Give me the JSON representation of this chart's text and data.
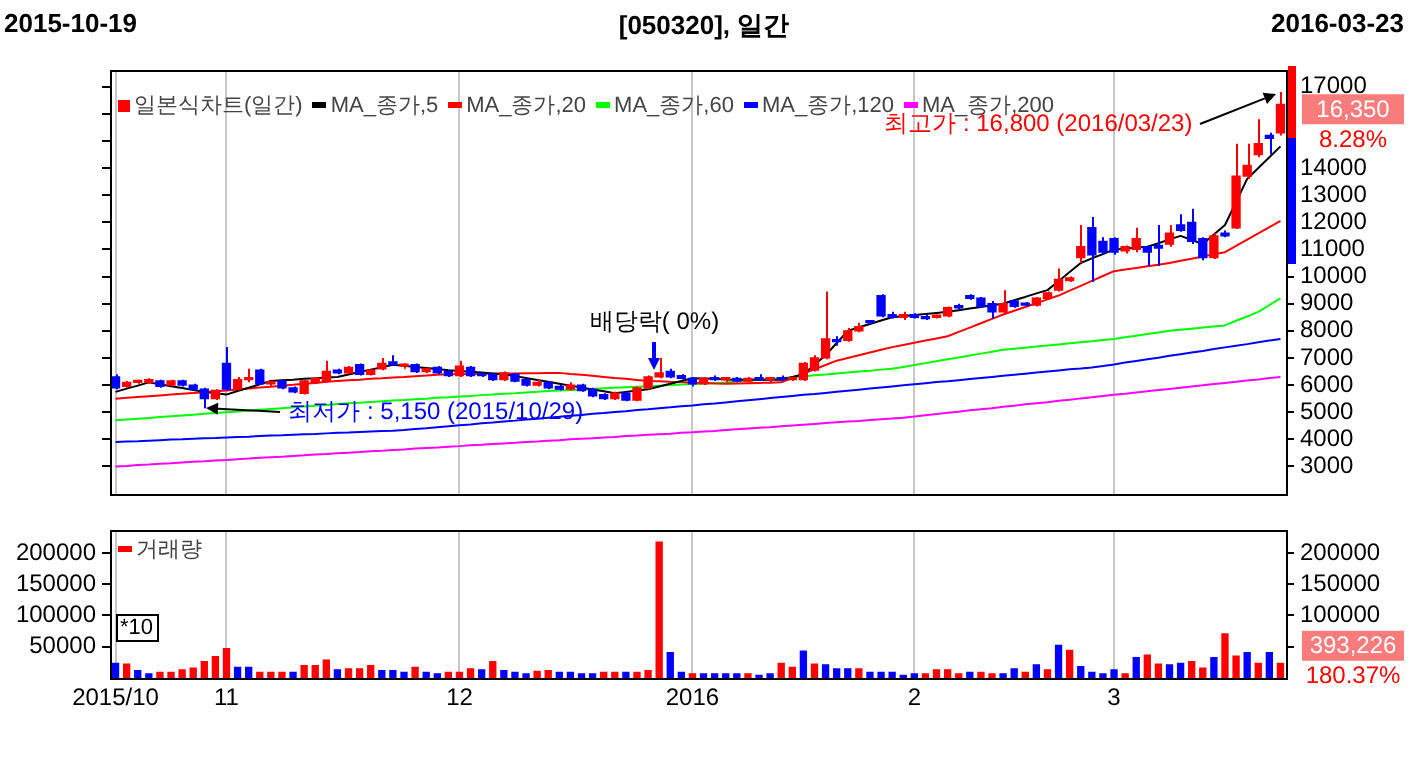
{
  "chart_data": [
    {
      "type": "candlestick",
      "title": "[050320], 일간",
      "legend": "top left",
      "grid": "x",
      "tick_labels": "y",
      "categories": [
        "2015/10",
        null,
        null,
        null,
        null,
        null,
        null,
        null,
        null,
        null,
        "11",
        null,
        null,
        null,
        null,
        null,
        null,
        null,
        null,
        null,
        null,
        null,
        null,
        null,
        null,
        null,
        null,
        null,
        null,
        null,
        null,
        "12",
        null,
        null,
        null,
        null,
        null,
        null,
        null,
        null,
        null,
        null,
        null,
        null,
        null,
        null,
        null,
        null,
        null,
        null,
        null,
        null,
        "2016",
        null,
        null,
        null,
        null,
        null,
        null,
        null,
        null,
        null,
        null,
        null,
        null,
        null,
        null,
        null,
        null,
        null,
        null,
        null,
        "2",
        null,
        null,
        null,
        null,
        null,
        null,
        null,
        null,
        null,
        null,
        null,
        null,
        null,
        null,
        null,
        null,
        null,
        "3",
        null,
        null,
        null,
        null,
        null,
        null,
        null,
        null,
        null,
        null,
        null,
        null,
        null,
        null,
        null
      ],
      "ylim": [
        2000,
        17600
      ],
      "yticks": [
        3000,
        4000,
        5000,
        6000,
        7000,
        8000,
        9000,
        10000,
        11000,
        12000,
        13000,
        14000,
        {
          "value": 15000,
          "label": null
        },
        {
          "value": 16000,
          "label": null
        },
        17000
      ],
      "annotations": [
        "2015-10-19",
        "2016-03-23",
        "16,350",
        "8.28%",
        "최고가 : 16,800 (2016/03/23)",
        {
          "text": "최저가 : 5,150 (2015/10/29)",
          "y": 5150
        },
        "배당락( 0%)"
      ],
      "series": [
        {
          "name": "일본식차트(일간)",
          "type": "candlestick",
          "color": "#ff0000",
          "ohlc": [
            [
              6300,
              6400,
              5850,
              5900
            ],
            [
              5950,
              6150,
              5900,
              6100
            ],
            [
              6100,
              6200,
              6050,
              6150
            ],
            [
              6100,
              6250,
              6050,
              6200
            ],
            [
              6150,
              6200,
              5900,
              5950
            ],
            [
              6000,
              6200,
              5950,
              6150
            ],
            [
              6150,
              6200,
              5950,
              6000
            ],
            [
              6000,
              6050,
              5800,
              5850
            ],
            [
              5850,
              5900,
              5150,
              5500
            ],
            [
              5500,
              5850,
              5450,
              5800
            ],
            [
              6800,
              7400,
              5800,
              5850
            ],
            [
              5850,
              6300,
              5800,
              6200
            ],
            [
              6200,
              6600,
              6100,
              6250
            ],
            [
              6550,
              6600,
              6000,
              6050
            ],
            [
              6050,
              6150,
              5950,
              6100
            ],
            [
              6150,
              6200,
              5850,
              5900
            ],
            [
              5900,
              5950,
              5700,
              5750
            ],
            [
              5700,
              6200,
              5650,
              6150
            ],
            [
              6100,
              6300,
              6050,
              6250
            ],
            [
              6150,
              6900,
              6100,
              6500
            ],
            [
              6550,
              6600,
              6400,
              6450
            ],
            [
              6450,
              6700,
              6400,
              6650
            ],
            [
              6750,
              6800,
              6350,
              6400
            ],
            [
              6400,
              6600,
              6350,
              6550
            ],
            [
              6600,
              7000,
              6550,
              6800
            ],
            [
              6850,
              7100,
              6700,
              6750
            ],
            [
              6700,
              6800,
              6600,
              6750
            ],
            [
              6750,
              6800,
              6450,
              6500
            ],
            [
              6500,
              6650,
              6450,
              6600
            ],
            [
              6650,
              6700,
              6400,
              6450
            ],
            [
              6500,
              6550,
              6300,
              6350
            ],
            [
              6350,
              6900,
              6300,
              6700
            ],
            [
              6650,
              6700,
              6300,
              6350
            ],
            [
              6400,
              6450,
              6300,
              6350
            ],
            [
              6400,
              6450,
              6150,
              6200
            ],
            [
              6200,
              6500,
              6150,
              6450
            ],
            [
              6400,
              6450,
              6100,
              6150
            ],
            [
              6200,
              6250,
              5950,
              6000
            ],
            [
              6000,
              6200,
              5950,
              6100
            ],
            [
              6100,
              6150,
              5850,
              5900
            ],
            [
              5950,
              6000,
              5800,
              5850
            ],
            [
              5850,
              6100,
              5800,
              6000
            ],
            [
              6000,
              6050,
              5750,
              5800
            ],
            [
              5850,
              5900,
              5550,
              5600
            ],
            [
              5650,
              5700,
              5450,
              5500
            ],
            [
              5500,
              5750,
              5450,
              5700
            ],
            [
              5700,
              5750,
              5400,
              5450
            ],
            [
              5450,
              5950,
              5400,
              5900
            ],
            [
              5900,
              6350,
              5850,
              6300
            ],
            [
              6300,
              7000,
              6250,
              6450
            ],
            [
              6500,
              6600,
              6250,
              6300
            ],
            [
              6350,
              6400,
              6200,
              6250
            ],
            [
              6250,
              6300,
              5950,
              6050
            ],
            [
              6050,
              6300,
              6000,
              6250
            ],
            [
              6250,
              6350,
              6150,
              6200
            ],
            [
              6200,
              6300,
              6100,
              6250
            ],
            [
              6250,
              6300,
              6100,
              6150
            ],
            [
              6150,
              6300,
              6100,
              6250
            ],
            [
              6250,
              6400,
              6150,
              6200
            ],
            [
              6200,
              6300,
              6100,
              6250
            ],
            [
              6250,
              6350,
              6150,
              6200
            ],
            [
              6200,
              6300,
              6150,
              6250
            ],
            [
              6200,
              6850,
              6150,
              6800
            ],
            [
              6550,
              7100,
              6500,
              7000
            ],
            [
              7000,
              9450,
              6950,
              7700
            ],
            [
              7650,
              7800,
              7450,
              7600
            ],
            [
              7650,
              8100,
              7600,
              8000
            ],
            [
              8000,
              8300,
              7950,
              8150
            ],
            [
              8350,
              8400,
              8250,
              8300
            ],
            [
              9300,
              9350,
              8500,
              8550
            ],
            [
              8600,
              8700,
              8450,
              8500
            ],
            [
              8500,
              8700,
              8400,
              8600
            ],
            [
              8600,
              8650,
              8450,
              8500
            ],
            [
              8500,
              8600,
              8400,
              8450
            ],
            [
              8500,
              8600,
              8450,
              8550
            ],
            [
              8550,
              8900,
              8500,
              8850
            ],
            [
              8900,
              9000,
              8800,
              8850
            ],
            [
              9300,
              9350,
              9150,
              9200
            ],
            [
              9200,
              9250,
              8850,
              8900
            ],
            [
              9000,
              9100,
              8450,
              8700
            ],
            [
              8700,
              9500,
              8650,
              9000
            ],
            [
              9100,
              9150,
              8850,
              8900
            ],
            [
              9000,
              9050,
              8900,
              8950
            ],
            [
              8950,
              9250,
              8900,
              9200
            ],
            [
              9200,
              9450,
              9150,
              9400
            ],
            [
              9500,
              10300,
              9450,
              9900
            ],
            [
              9850,
              10000,
              9800,
              9950
            ],
            [
              10700,
              11900,
              10500,
              11100
            ],
            [
              11800,
              12200,
              9800,
              10800
            ],
            [
              11300,
              11450,
              10800,
              10900
            ],
            [
              11400,
              11450,
              10800,
              10900
            ],
            [
              10950,
              11150,
              10850,
              11100
            ],
            [
              11000,
              11800,
              10900,
              11400
            ],
            [
              11100,
              11150,
              10400,
              10900
            ],
            [
              11150,
              11900,
              10400,
              11050
            ],
            [
              11200,
              11900,
              11100,
              11600
            ],
            [
              11900,
              12300,
              11650,
              11700
            ],
            [
              12000,
              12500,
              11200,
              11300
            ],
            [
              11400,
              11450,
              10600,
              10700
            ],
            [
              10700,
              11600,
              10650,
              11500
            ],
            [
              11600,
              11700,
              11450,
              11500
            ],
            [
              11800,
              14900,
              11750,
              13700
            ],
            [
              13700,
              14900,
              13600,
              14100
            ],
            [
              14500,
              15800,
              14400,
              14900
            ],
            [
              15200,
              15300,
              14500,
              15100
            ],
            [
              15300,
              16800,
              15200,
              16350
            ]
          ],
          "colors": [
            "#0000ff",
            "#ff0000",
            "#ff0000",
            "#ff0000",
            "#0000ff",
            "#ff0000",
            "#0000ff",
            "#0000ff",
            "#0000ff",
            "#ff0000",
            "#0000ff",
            "#ff0000",
            "#ff0000",
            "#0000ff",
            "#ff0000",
            "#0000ff",
            "#0000ff",
            "#ff0000",
            "#ff0000",
            "#ff0000",
            "#0000ff",
            "#ff0000",
            "#0000ff",
            "#ff0000",
            "#ff0000",
            "#0000ff",
            "#ff0000",
            "#0000ff",
            "#ff0000",
            "#0000ff",
            "#0000ff",
            "#ff0000",
            "#0000ff",
            "#0000ff",
            "#0000ff",
            "#ff0000",
            "#0000ff",
            "#0000ff",
            "#ff0000",
            "#0000ff",
            "#0000ff",
            "#ff0000",
            "#0000ff",
            "#0000ff",
            "#0000ff",
            "#ff0000",
            "#0000ff",
            "#ff0000",
            "#ff0000",
            "#ff0000",
            "#0000ff",
            "#0000ff",
            "#0000ff",
            "#ff0000",
            "#0000ff",
            "#ff0000",
            "#0000ff",
            "#ff0000",
            "#0000ff",
            "#ff0000",
            "#0000ff",
            "#ff0000",
            "#ff0000",
            "#ff0000",
            "#ff0000",
            "#0000ff",
            "#ff0000",
            "#ff0000",
            "#0000ff",
            "#0000ff",
            "#0000ff",
            "#ff0000",
            "#0000ff",
            "#0000ff",
            "#ff0000",
            "#ff0000",
            "#0000ff",
            "#0000ff",
            "#0000ff",
            "#0000ff",
            "#ff0000",
            "#0000ff",
            "#0000ff",
            "#ff0000",
            "#ff0000",
            "#ff0000",
            "#ff0000",
            "#ff0000",
            "#0000ff",
            "#0000ff",
            "#0000ff",
            "#ff0000",
            "#ff0000",
            "#0000ff",
            "#0000ff",
            "#ff0000",
            "#0000ff",
            "#0000ff",
            "#0000ff",
            "#ff0000",
            "#0000ff",
            "#ff0000",
            "#ff0000",
            "#ff0000",
            "#0000ff",
            "#ff0000"
          ]
        },
        {
          "name": "MA_종가,5",
          "type": "line",
          "color": "#000000",
          "values": [
            5750,
            5870,
            5980,
            6100,
            6030,
            5960,
            5890,
            5820,
            5750,
            5700,
            5650,
            5780,
            5900,
            6030,
            6150,
            6180,
            6200,
            6230,
            6250,
            6280,
            6300,
            6390,
            6480,
            6570,
            6660,
            6750,
            6710,
            6670,
            6630,
            6590,
            6550,
            6520,
            6490,
            6460,
            6430,
            6400,
            6330,
            6260,
            6190,
            6120,
            6050,
            5980,
            5910,
            5840,
            5770,
            5700,
            5750,
            5800,
            5850,
            5950,
            6050,
            6150,
            6250,
            6240,
            6230,
            6210,
            6200,
            6200,
            6200,
            6200,
            6200,
            6300,
            6400,
            6750,
            7100,
            7550,
            8000,
            8130,
            8250,
            8380,
            8500,
            8540,
            8580,
            8620,
            8660,
            8700,
            8760,
            8820,
            8880,
            8940,
            9000,
            9130,
            9250,
            9380,
            9500,
            9830,
            10170,
            10500,
            10670,
            10830,
            11000,
            11030,
            11070,
            11100,
            11230,
            11370,
            11500,
            11350,
            11200,
            11550,
            11900,
            12750,
            13600,
            14000,
            14400,
            14800
          ]
        },
        {
          "name": "MA_종가,20",
          "type": "line",
          "color": "#ff0000",
          "values": [
            5500,
            5530,
            5560,
            5590,
            5620,
            5650,
            5680,
            5710,
            5740,
            5770,
            5800,
            5840,
            5870,
            5910,
            5940,
            5980,
            6010,
            6050,
            6080,
            6120,
            6150,
            6180,
            6200,
            6230,
            6250,
            6280,
            6300,
            6330,
            6350,
            6380,
            6400,
            6410,
            6410,
            6420,
            6420,
            6430,
            6430,
            6440,
            6440,
            6450,
            6450,
            6410,
            6380,
            6340,
            6300,
            6260,
            6230,
            6190,
            6150,
            6140,
            6120,
            6110,
            6090,
            6080,
            6060,
            6050,
            6060,
            6070,
            6080,
            6090,
            6100,
            6260,
            6420,
            6580,
            6740,
            6900,
            7000,
            7100,
            7200,
            7300,
            7400,
            7480,
            7560,
            7640,
            7720,
            7800,
            7960,
            8120,
            8280,
            8440,
            8600,
            8740,
            8880,
            9020,
            9160,
            9300,
            9480,
            9660,
            9840,
            10020,
            10200,
            10260,
            10320,
            10380,
            10440,
            10500,
            10580,
            10660,
            10740,
            10820,
            10900,
            11130,
            11360,
            11590,
            11820,
            12050
          ]
        },
        {
          "name": "MA_종가,60",
          "type": "line",
          "color": "#00ff00",
          "values": [
            4700,
            4730,
            4760,
            4790,
            4820,
            4850,
            4880,
            4910,
            4940,
            4970,
            5000,
            5030,
            5060,
            5090,
            5120,
            5150,
            5180,
            5210,
            5240,
            5270,
            5300,
            5330,
            5350,
            5380,
            5400,
            5430,
            5450,
            5480,
            5500,
            5530,
            5550,
            5580,
            5600,
            5630,
            5650,
            5680,
            5700,
            5730,
            5750,
            5780,
            5800,
            5820,
            5840,
            5860,
            5880,
            5900,
            5920,
            5940,
            5960,
            5980,
            6000,
            6020,
            6040,
            6060,
            6080,
            6100,
            6130,
            6160,
            6190,
            6220,
            6250,
            6290,
            6320,
            6360,
            6390,
            6430,
            6460,
            6500,
            6530,
            6570,
            6600,
            6670,
            6740,
            6810,
            6880,
            6950,
            7020,
            7090,
            7160,
            7230,
            7300,
            7340,
            7380,
            7420,
            7460,
            7500,
            7540,
            7580,
            7620,
            7660,
            7700,
            7760,
            7820,
            7880,
            7940,
            8000,
            8040,
            8080,
            8120,
            8160,
            8200,
            8370,
            8530,
            8700,
            8950,
            9200
          ]
        },
        {
          "name": "MA_종가,120",
          "type": "line",
          "color": "#0000ff",
          "values": [
            3900,
            3920,
            3930,
            3950,
            3970,
            3990,
            4000,
            4020,
            4040,
            4050,
            4070,
            4090,
            4100,
            4120,
            4140,
            4150,
            4170,
            4190,
            4200,
            4220,
            4240,
            4250,
            4270,
            4290,
            4310,
            4320,
            4340,
            4380,
            4410,
            4450,
            4480,
            4520,
            4550,
            4590,
            4620,
            4660,
            4690,
            4730,
            4760,
            4800,
            4830,
            4870,
            4900,
            4940,
            4970,
            5010,
            5040,
            5080,
            5110,
            5150,
            5180,
            5220,
            5250,
            5290,
            5320,
            5360,
            5400,
            5440,
            5480,
            5520,
            5560,
            5600,
            5640,
            5670,
            5710,
            5750,
            5790,
            5830,
            5870,
            5910,
            5950,
            5990,
            6030,
            6070,
            6110,
            6140,
            6180,
            6220,
            6260,
            6300,
            6340,
            6380,
            6420,
            6460,
            6500,
            6540,
            6580,
            6610,
            6650,
            6700,
            6760,
            6830,
            6890,
            6950,
            7010,
            7080,
            7140,
            7200,
            7260,
            7330,
            7390,
            7450,
            7510,
            7580,
            7640,
            7700
          ]
        },
        {
          "name": "MA_종가,200",
          "type": "line",
          "color": "#ff00ff",
          "values": [
            3000,
            3020,
            3050,
            3070,
            3100,
            3120,
            3150,
            3170,
            3190,
            3220,
            3240,
            3270,
            3290,
            3320,
            3340,
            3360,
            3390,
            3410,
            3440,
            3460,
            3490,
            3510,
            3530,
            3560,
            3580,
            3610,
            3630,
            3660,
            3680,
            3700,
            3730,
            3750,
            3780,
            3800,
            3830,
            3850,
            3870,
            3900,
            3920,
            3950,
            3970,
            4000,
            4020,
            4040,
            4070,
            4090,
            4120,
            4140,
            4170,
            4190,
            4210,
            4240,
            4260,
            4290,
            4310,
            4340,
            4370,
            4400,
            4430,
            4450,
            4480,
            4510,
            4540,
            4570,
            4600,
            4630,
            4660,
            4680,
            4710,
            4740,
            4770,
            4800,
            4840,
            4890,
            4930,
            4980,
            5020,
            5070,
            5110,
            5150,
            5200,
            5240,
            5290,
            5330,
            5370,
            5420,
            5460,
            5510,
            5550,
            5600,
            5640,
            5680,
            5730,
            5770,
            5820,
            5860,
            5900,
            5950,
            5990,
            6040,
            6080,
            6120,
            6170,
            6210,
            6260,
            6300
          ]
        }
      ]
    },
    {
      "type": "bar",
      "legend": "top left",
      "grid": "x",
      "categories": [
        "2015/10",
        null,
        null,
        null,
        null,
        null,
        null,
        null,
        null,
        null,
        "11",
        null,
        null,
        null,
        null,
        null,
        null,
        null,
        null,
        null,
        null,
        null,
        null,
        null,
        null,
        null,
        null,
        null,
        null,
        null,
        null,
        "12",
        null,
        null,
        null,
        null,
        null,
        null,
        null,
        null,
        null,
        null,
        null,
        null,
        null,
        null,
        null,
        null,
        null,
        null,
        null,
        null,
        "2016",
        null,
        null,
        null,
        null,
        null,
        null,
        null,
        null,
        null,
        null,
        null,
        null,
        null,
        null,
        null,
        null,
        null,
        null,
        null,
        "2",
        null,
        null,
        null,
        null,
        null,
        null,
        null,
        null,
        null,
        null,
        null,
        null,
        null,
        null,
        null,
        null,
        null,
        "3",
        null,
        null,
        null,
        null,
        null,
        null,
        null,
        null,
        null,
        null,
        null,
        null,
        null,
        null,
        null
      ],
      "ylim": [
        0,
        236000
      ],
      "yticks": [
        50000,
        100000,
        150000,
        200000
      ],
      "y2lim": [
        0,
        236000
      ],
      "y2ticks": [
        {
          "value": 50000,
          "label": null
        },
        100000,
        150000,
        200000
      ],
      "annotations": [
        "*10",
        "393,226",
        "180.37%"
      ],
      "series": [
        {
          "name": "거래량",
          "color": "#ff0000",
          "values": [
            23500,
            22200,
            11700,
            6500,
            9100,
            9100,
            13000,
            15700,
            26000,
            34000,
            47000,
            17000,
            17000,
            9000,
            9000,
            9000,
            9000,
            19600,
            19600,
            28700,
            13000,
            14400,
            14400,
            19600,
            11700,
            11700,
            9000,
            17000,
            9000,
            6500,
            9000,
            9000,
            14400,
            13000,
            26000,
            11700,
            9000,
            6500,
            10400,
            11700,
            9000,
            9000,
            6500,
            6500,
            9000,
            9000,
            9000,
            9000,
            11700,
            217000,
            40500,
            9000,
            6500,
            6500,
            6500,
            6500,
            6500,
            6500,
            4000,
            6500,
            23500,
            17000,
            43000,
            22000,
            21000,
            14400,
            14400,
            14400,
            9000,
            9000,
            9000,
            4000,
            6500,
            6500,
            13000,
            13000,
            6500,
            9000,
            9000,
            6500,
            6500,
            14400,
            9000,
            21000,
            13000,
            52000,
            44000,
            18300,
            9000,
            6500,
            13000,
            6500,
            32600,
            36500,
            22200,
            21000,
            23500,
            26000,
            15700,
            32600,
            70500,
            35000,
            40500,
            23500,
            40500,
            23500
          ],
          "colors": [
            "#0000ff",
            "#ff0000",
            "#0000ff",
            "#0000ff",
            "#ff0000",
            "#ff0000",
            "#ff0000",
            "#ff0000",
            "#ff0000",
            "#ff0000",
            "#ff0000",
            "#0000ff",
            "#0000ff",
            "#ff0000",
            "#ff0000",
            "#ff0000",
            "#0000ff",
            "#ff0000",
            "#ff0000",
            "#ff0000",
            "#0000ff",
            "#ff0000",
            "#ff0000",
            "#ff0000",
            "#0000ff",
            "#0000ff",
            "#0000ff",
            "#ff0000",
            "#0000ff",
            "#0000ff",
            "#ff0000",
            "#ff0000",
            "#ff0000",
            "#0000ff",
            "#ff0000",
            "#0000ff",
            "#0000ff",
            "#0000ff",
            "#ff0000",
            "#ff0000",
            "#0000ff",
            "#0000ff",
            "#0000ff",
            "#0000ff",
            "#ff0000",
            "#ff0000",
            "#0000ff",
            "#ff0000",
            "#ff0000",
            "#ff0000",
            "#0000ff",
            "#0000ff",
            "#ff0000",
            "#0000ff",
            "#0000ff",
            "#0000ff",
            "#0000ff",
            "#ff0000",
            "#0000ff",
            "#0000ff",
            "#ff0000",
            "#ff0000",
            "#0000ff",
            "#ff0000",
            "#0000ff",
            "#0000ff",
            "#0000ff",
            "#ff0000",
            "#0000ff",
            "#0000ff",
            "#0000ff",
            "#0000ff",
            "#0000ff",
            "#ff0000",
            "#ff0000",
            "#ff0000",
            "#ff0000",
            "#0000ff",
            "#ff0000",
            "#ff0000",
            "#0000ff",
            "#0000ff",
            "#ff0000",
            "#0000ff",
            "#ff0000",
            "#0000ff",
            "#ff0000",
            "#0000ff",
            "#0000ff",
            "#0000ff",
            "#0000ff",
            "#ff0000",
            "#0000ff",
            "#ff0000",
            "#ff0000",
            "#0000ff",
            "#0000ff",
            "#ff0000",
            "#ff0000",
            "#0000ff",
            "#ff0000",
            "#ff0000",
            "#0000ff",
            "#ff0000",
            "#0000ff",
            "#ff0000"
          ]
        }
      ]
    }
  ]
}
